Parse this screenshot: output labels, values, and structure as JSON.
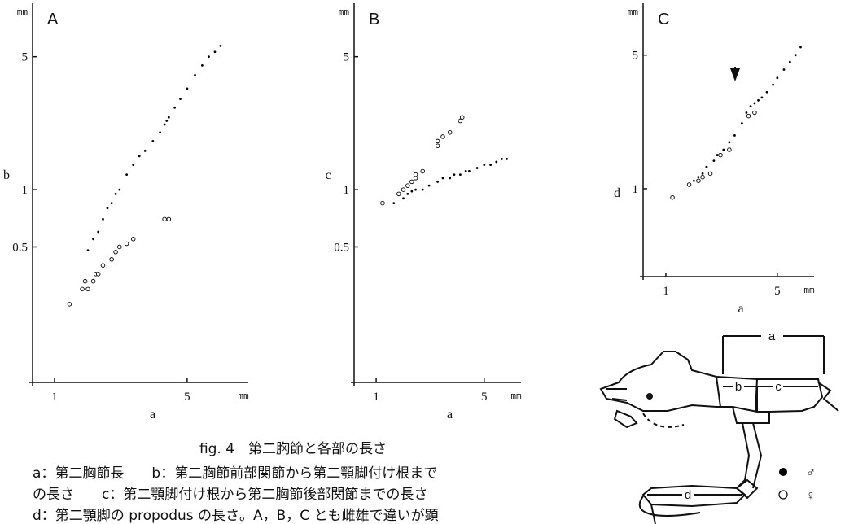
{
  "chart_data": [
    {
      "type": "scatter",
      "title": "A",
      "x_label": "a",
      "y_label": "b",
      "x_unit": "mm",
      "y_unit": "mm",
      "log_scale": true,
      "xlim": [
        0.766,
        10.5
      ],
      "ylim": [
        0.097,
        9.0
      ],
      "xticks": [
        1,
        5
      ],
      "yticks": [
        0.5,
        1,
        5
      ],
      "series": [
        {
          "name": "♂",
          "color": "#000000",
          "marker": "dot",
          "x": [
            1.5,
            1.6,
            1.7,
            1.8,
            1.9,
            2.0,
            2.1,
            2.2,
            2.4,
            2.6,
            2.8,
            3.0,
            3.3,
            3.6,
            3.8,
            3.9,
            4.0,
            4.3,
            4.6,
            5.0,
            5.5,
            6.0,
            6.5,
            7.0,
            7.5
          ],
          "values": [
            0.48,
            0.55,
            0.6,
            0.7,
            0.8,
            0.85,
            0.95,
            1.0,
            1.2,
            1.35,
            1.5,
            1.6,
            1.8,
            2.0,
            2.2,
            2.3,
            2.4,
            2.7,
            3.0,
            3.4,
            4.0,
            4.5,
            5.0,
            5.3,
            5.7
          ]
        },
        {
          "name": "♀",
          "color": "#000000",
          "marker": "circle",
          "x": [
            1.2,
            1.4,
            1.45,
            1.5,
            1.6,
            1.65,
            1.7,
            1.8,
            2.0,
            2.1,
            2.2,
            2.4,
            2.6,
            3.8,
            4.0
          ],
          "values": [
            0.25,
            0.3,
            0.33,
            0.3,
            0.33,
            0.36,
            0.36,
            0.4,
            0.43,
            0.47,
            0.5,
            0.52,
            0.55,
            0.7,
            0.7
          ]
        }
      ]
    },
    {
      "type": "scatter",
      "title": "B",
      "x_label": "a",
      "y_label": "c",
      "x_unit": "mm",
      "y_unit": "mm",
      "log_scale": true,
      "xlim": [
        0.72,
        8.65
      ],
      "ylim": [
        0.097,
        9.0
      ],
      "xticks": [
        1,
        5
      ],
      "yticks": [
        0.5,
        1,
        5
      ],
      "series": [
        {
          "name": "♂",
          "color": "#000000",
          "marker": "dot",
          "x": [
            1.3,
            1.5,
            1.6,
            1.7,
            1.8,
            2.0,
            2.2,
            2.5,
            2.7,
            3.0,
            3.2,
            3.5,
            3.8,
            4.0,
            4.5,
            5.0,
            5.5,
            6.0,
            6.5,
            7.0
          ],
          "values": [
            0.85,
            0.9,
            0.95,
            0.98,
            1.0,
            1.0,
            1.05,
            1.1,
            1.15,
            1.15,
            1.2,
            1.2,
            1.25,
            1.25,
            1.3,
            1.35,
            1.35,
            1.4,
            1.45,
            1.45
          ]
        },
        {
          "name": "♀",
          "color": "#000000",
          "marker": "circle",
          "x": [
            1.1,
            1.4,
            1.5,
            1.6,
            1.7,
            1.8,
            1.8,
            2.0,
            2.5,
            2.5,
            2.7,
            3.0,
            3.5,
            3.6
          ],
          "values": [
            0.85,
            0.95,
            1.0,
            1.05,
            1.1,
            1.15,
            1.2,
            1.25,
            1.7,
            1.8,
            1.9,
            2.0,
            2.3,
            2.4
          ]
        }
      ]
    },
    {
      "type": "scatter",
      "title": "C",
      "x_label": "a",
      "y_label": "d",
      "x_unit": "mm",
      "y_unit": "mm",
      "log_scale": true,
      "xlim": [
        0.72,
        8.5
      ],
      "ylim": [
        0.347,
        8.8
      ],
      "xticks": [
        1,
        5
      ],
      "yticks": [
        1,
        5
      ],
      "series": [
        {
          "name": "♂",
          "color": "#000000",
          "marker": "dot",
          "x": [
            1.5,
            1.6,
            1.7,
            1.8,
            2.0,
            2.1,
            2.3,
            2.5,
            2.7,
            3.0,
            3.2,
            3.4,
            3.6,
            3.8,
            4.0,
            4.3,
            4.7,
            5.0,
            5.5,
            6.0,
            6.5,
            7.0
          ],
          "values": [
            1.1,
            1.15,
            1.2,
            1.3,
            1.4,
            1.5,
            1.6,
            1.75,
            1.9,
            2.2,
            2.5,
            2.7,
            2.8,
            2.9,
            3.0,
            3.2,
            3.5,
            3.8,
            4.2,
            4.6,
            5.0,
            5.5
          ]
        },
        {
          "name": "♀",
          "color": "#000000",
          "marker": "circle",
          "x": [
            1.1,
            1.4,
            1.6,
            1.7,
            1.9,
            2.2,
            2.5,
            3.3,
            3.6
          ],
          "values": [
            0.9,
            1.05,
            1.1,
            1.15,
            1.2,
            1.5,
            1.6,
            2.4,
            2.5
          ]
        }
      ]
    }
  ],
  "caption": {
    "title": "fig. 4　第二胸節と各部の長さ",
    "lines": [
      "a：第二胸節長　　b：第二胸節前部関節から第二顎脚付け根まで",
      "の長さ　　c：第二顎脚付け根から第二胸節後部関節までの長さ",
      "d：第二顎脚の propodus の長さ。A，B，C とも雌雄で違いが顕"
    ]
  },
  "diagram": {
    "labels": [
      "a",
      "b",
      "c",
      "d"
    ]
  }
}
